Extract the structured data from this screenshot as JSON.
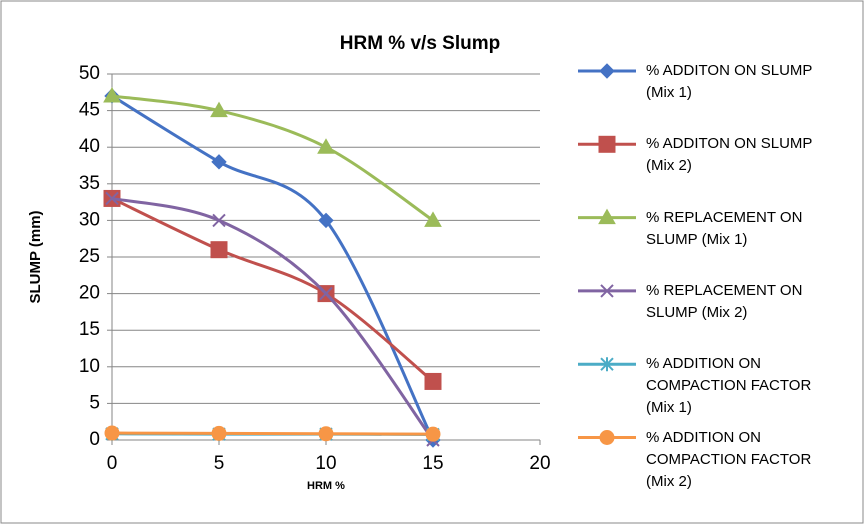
{
  "chart_data": {
    "type": "line",
    "title": "HRM % v/s Slump",
    "x_label": "HRM %",
    "y_label": "SLUMP (mm)",
    "x": [
      0,
      5,
      10,
      15
    ],
    "xlim": [
      0,
      20
    ],
    "xticks": [
      0,
      5,
      10,
      15,
      20
    ],
    "ylim": [
      0,
      50
    ],
    "yticks": [
      0,
      5,
      10,
      15,
      20,
      25,
      30,
      35,
      40,
      45,
      50
    ],
    "grid": true,
    "legend": "right",
    "smooth": true,
    "series": [
      {
        "name": "% ADDITON ON SLUMP\n(Mix 1)",
        "color": "#4472c4",
        "marker": "diamond",
        "values": [
          47,
          38,
          30,
          0
        ]
      },
      {
        "name": "% ADDITON ON SLUMP\n(Mix 2)",
        "color": "#c0504d",
        "marker": "square",
        "values": [
          33,
          26,
          20,
          8
        ]
      },
      {
        "name": "% REPLACEMENT ON\nSLUMP (Mix 1)",
        "color": "#9bbb59",
        "marker": "triangle",
        "values": [
          47,
          45,
          40,
          30
        ]
      },
      {
        "name": "% REPLACEMENT ON\nSLUMP (Mix 2)",
        "color": "#8064a2",
        "marker": "x",
        "values": [
          33,
          30,
          20,
          0
        ]
      },
      {
        "name": "% ADDITION ON\nCOMPACTION FACTOR\n(Mix 1)",
        "color": "#4bacc6",
        "marker": "star",
        "values": [
          0.85,
          0.8,
          0.8,
          0.75
        ]
      },
      {
        "name": "% ADDITION ON\nCOMPACTION FACTOR\n(Mix 2)",
        "color": "#f79646",
        "marker": "circle",
        "values": [
          0.95,
          0.9,
          0.85,
          0.8
        ]
      }
    ]
  }
}
